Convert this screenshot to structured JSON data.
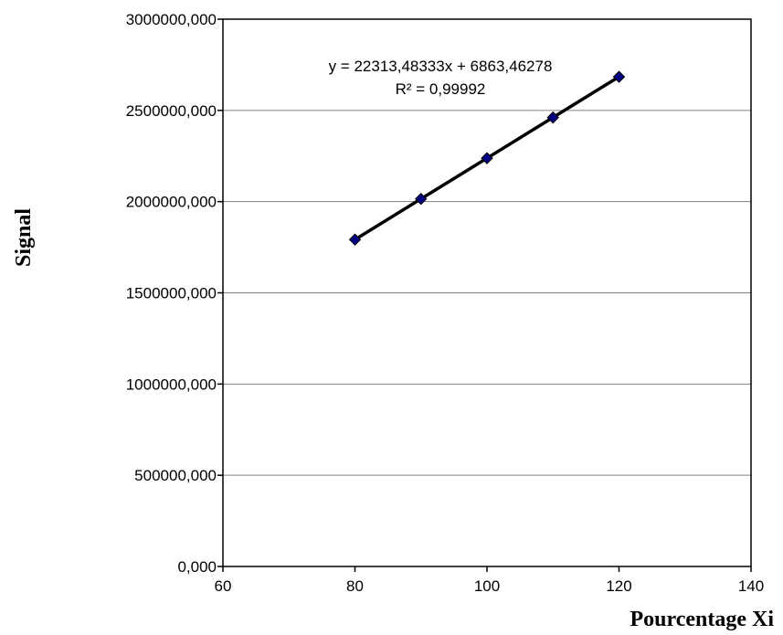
{
  "chart_data": {
    "type": "scatter",
    "title": "",
    "xlabel": "Pourcentage Xi",
    "ylabel": "Signal",
    "xlim": [
      60,
      140
    ],
    "ylim": [
      0,
      3000000
    ],
    "x_ticks": [
      "60",
      "80",
      "100",
      "120",
      "140"
    ],
    "y_ticks": [
      "0,000",
      "500000,000",
      "1000000,000",
      "1500000,000",
      "2000000,000",
      "2500000,000",
      "3000000,000"
    ],
    "grid": "horizontal",
    "legend": "none",
    "series": [
      {
        "x": [
          80,
          90,
          100,
          110,
          120
        ],
        "y": [
          1792000,
          2015000,
          2238000,
          2461000,
          2684000
        ],
        "marker": "diamond",
        "marker_color": "#000080"
      }
    ],
    "trendline": {
      "type": "linear",
      "slope": 22313.48333,
      "intercept": 6863.46278,
      "x_range": [
        80,
        120
      ],
      "color": "#000000"
    },
    "annotations": {
      "equation": "y = 22313,48333x + 6863,46278",
      "r_squared": "R² = 0,99992"
    }
  }
}
